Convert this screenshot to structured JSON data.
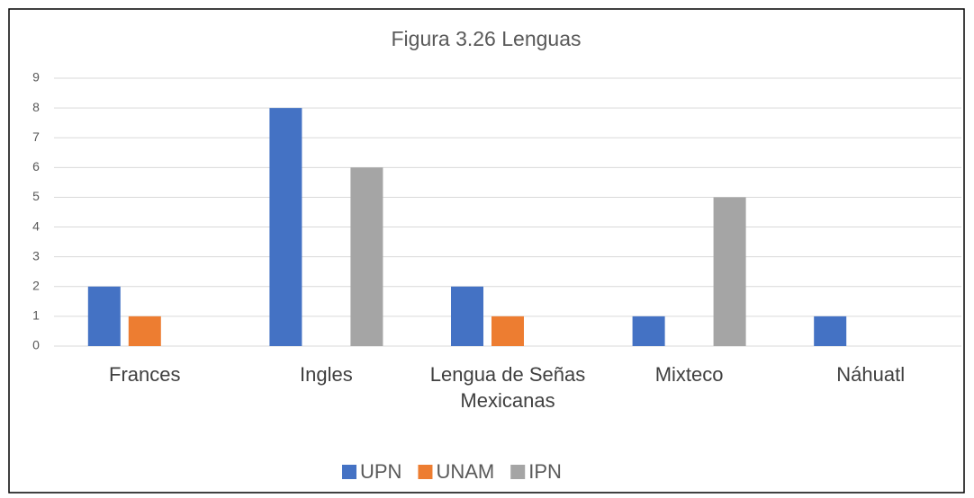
{
  "chart_data": {
    "type": "bar",
    "title": "Figura 3.26 Lenguas",
    "categories": [
      "Frances",
      "Ingles",
      "Lengua de Señas Mexicanas",
      "Mixteco",
      "Náhuatl"
    ],
    "series": [
      {
        "name": "UPN",
        "color": "#4472c4",
        "values": [
          2,
          8,
          2,
          1,
          1
        ]
      },
      {
        "name": "UNAM",
        "color": "#ed7d31",
        "values": [
          1,
          0,
          1,
          0,
          0
        ]
      },
      {
        "name": "IPN",
        "color": "#a5a5a5",
        "values": [
          0,
          6,
          0,
          5,
          0
        ]
      }
    ],
    "ylim": [
      0,
      9
    ],
    "yticks": [
      0,
      1,
      2,
      3,
      4,
      5,
      6,
      7,
      8,
      9
    ],
    "grid": true,
    "legend": "bottom"
  }
}
